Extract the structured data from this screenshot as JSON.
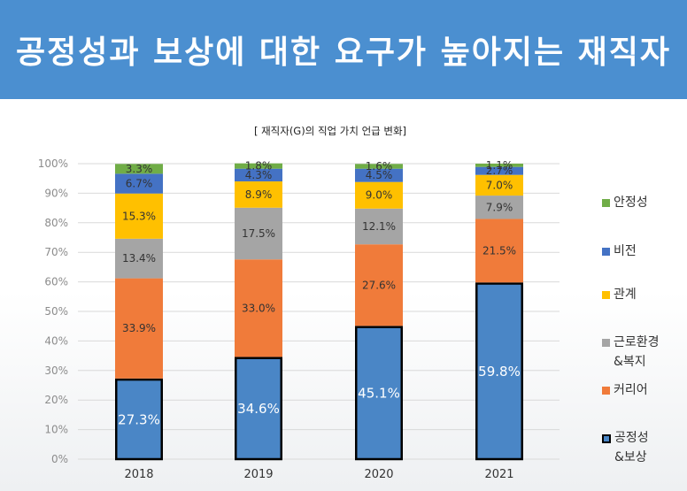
{
  "banner": {
    "title": "공정성과 보상에 대한 요구가 높아지는 재직자"
  },
  "chart_data": {
    "type": "bar",
    "stacked": true,
    "title": "[ 재직자(G)의 직업 가치 언급 변화]",
    "categories": [
      "2018",
      "2019",
      "2020",
      "2021"
    ],
    "y_ticks": [
      "0%",
      "10%",
      "20%",
      "30%",
      "40%",
      "50%",
      "60%",
      "70%",
      "80%",
      "90%",
      "100%"
    ],
    "ylim": [
      0,
      100
    ],
    "legend_position": "right",
    "series": [
      {
        "name": "공정성&보상",
        "color": "#4a86c6",
        "outlined": true,
        "values": [
          27.3,
          34.6,
          45.1,
          59.8
        ],
        "labels": [
          "27.3%",
          "34.6%",
          "45.1%",
          "59.8%"
        ]
      },
      {
        "name": "커리어",
        "color": "#f07b3a",
        "values": [
          33.9,
          33.0,
          27.6,
          21.5
        ],
        "labels": [
          "33.9%",
          "33.0%",
          "27.6%",
          "21.5%"
        ]
      },
      {
        "name": "근로환경&복지",
        "color": "#a5a5a5",
        "values": [
          13.4,
          17.5,
          12.1,
          7.9
        ],
        "labels": [
          "13.4%",
          "17.5%",
          "12.1%",
          "7.9%"
        ]
      },
      {
        "name": "관계",
        "color": "#ffc000",
        "values": [
          15.3,
          8.9,
          9.0,
          7.0
        ],
        "labels": [
          "15.3%",
          "8.9%",
          "9.0%",
          "7.0%"
        ]
      },
      {
        "name": "비전",
        "color": "#4472c4",
        "values": [
          6.7,
          4.3,
          4.5,
          2.7
        ],
        "labels": [
          "6.7%",
          "4.3%",
          "4.5%",
          "2.7%"
        ]
      },
      {
        "name": "안정성",
        "color": "#70ad47",
        "values": [
          3.3,
          1.8,
          1.6,
          1.1
        ],
        "labels": [
          "3.3%",
          "1.8%",
          "1.6%",
          "1.1%"
        ]
      }
    ]
  }
}
